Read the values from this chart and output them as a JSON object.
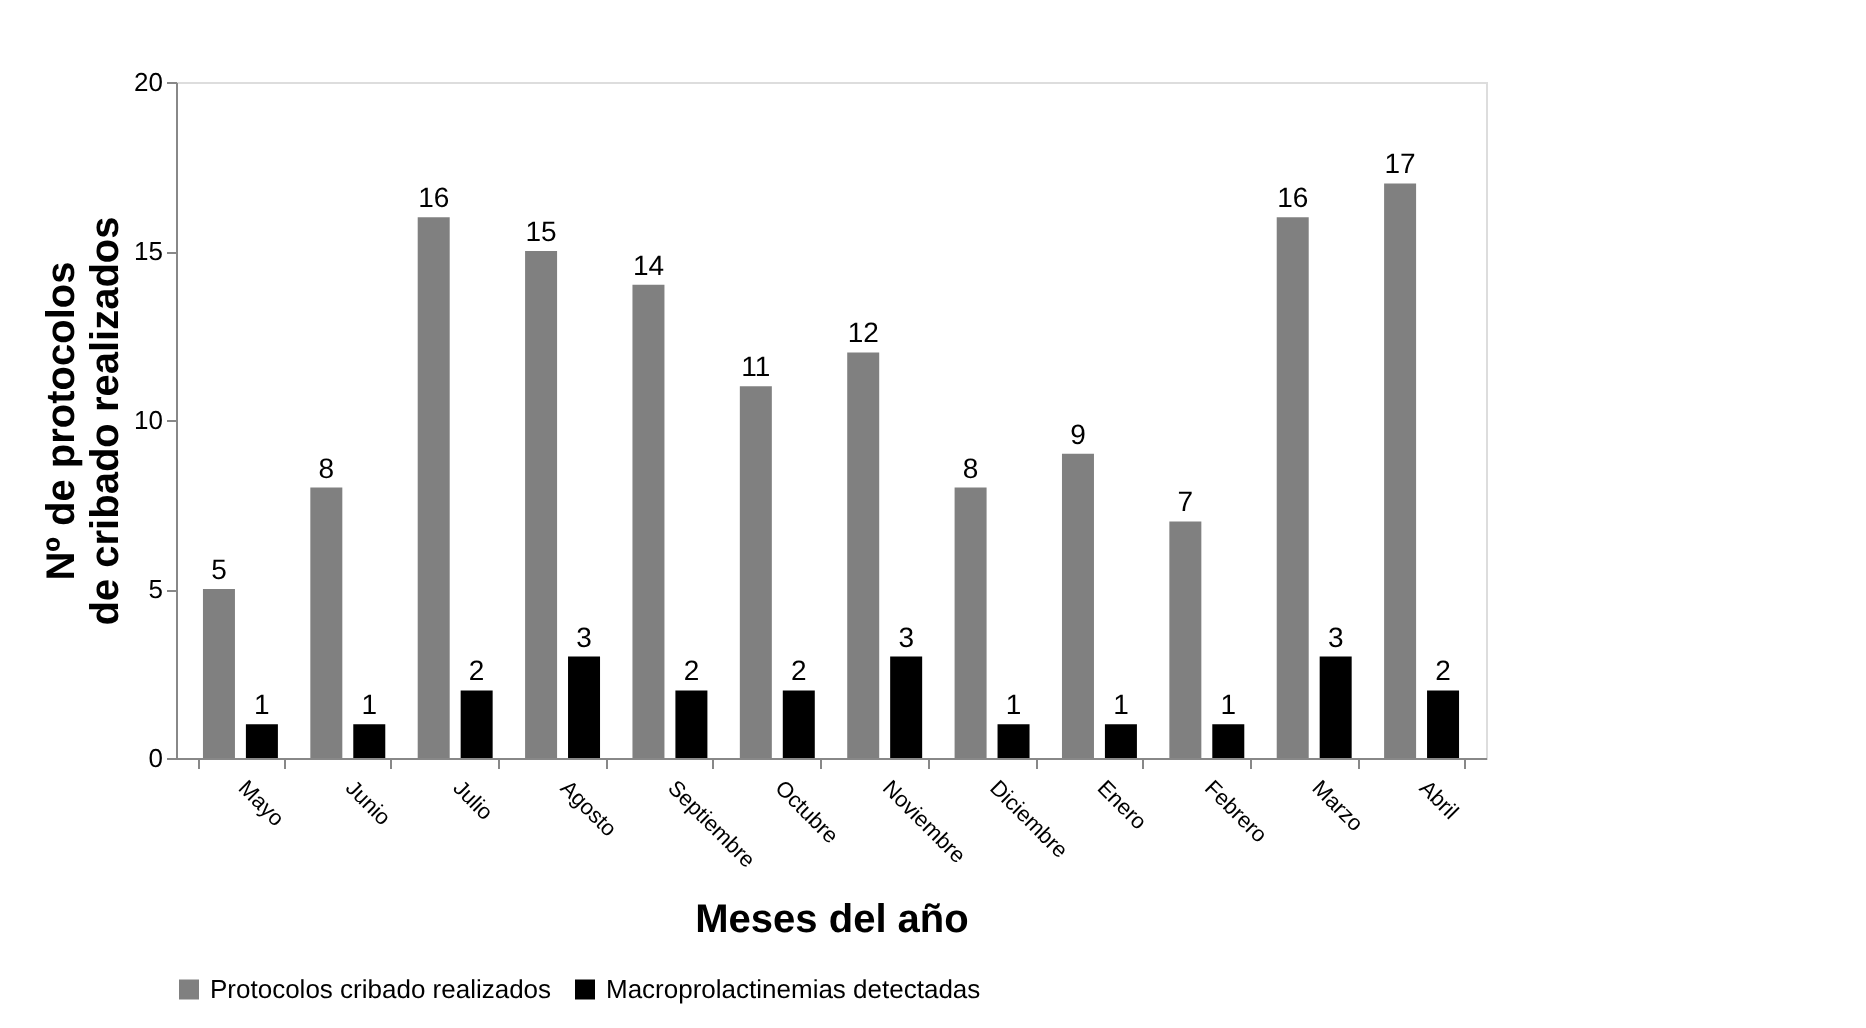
{
  "chart_data": {
    "type": "bar",
    "xlabel": "Meses del año",
    "ylabel": "Nº de protocolos de cribado realizados",
    "categories": [
      "Mayo",
      "Junio",
      "Julio",
      "Agosto",
      "Septiembre",
      "Octubre",
      "Noviembre",
      "Diciembre",
      "Enero",
      "Febrero",
      "Marzo",
      "Abril"
    ],
    "series": [
      {
        "name": "Protocolos cribado realizados",
        "color": "#808080",
        "values": [
          5,
          8,
          16,
          15,
          14,
          11,
          12,
          8,
          9,
          7,
          16,
          17
        ]
      },
      {
        "name": "Macroprolactinemias detectadas",
        "color": "#000000",
        "values": [
          1,
          1,
          2,
          3,
          2,
          2,
          3,
          1,
          1,
          1,
          3,
          2
        ]
      }
    ],
    "ylim": [
      0,
      20
    ],
    "yticks": [
      0,
      5,
      10,
      15,
      20
    ],
    "grid": false,
    "legend": "bottom",
    "data_labels": true
  }
}
